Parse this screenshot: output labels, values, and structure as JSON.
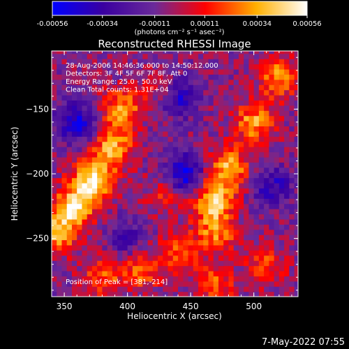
{
  "chart_data": {
    "type": "heatmap",
    "title": "Reconstructed RHESSI Image",
    "xlabel": "Heliocentric X (arcsec)",
    "ylabel": "Heliocentric Y (arcsec)",
    "xlim": [
      340,
      535
    ],
    "ylim": [
      -295,
      -105
    ],
    "xticks": [
      350,
      400,
      450,
      500
    ],
    "yticks": [
      -150,
      -200,
      -250
    ],
    "colorbar": {
      "min": -0.00056,
      "max": 0.00056,
      "tick_values": [
        -0.00056,
        -0.00034,
        -0.00011,
        0.00011,
        0.00034,
        0.00056
      ],
      "tick_labels": [
        "-0.00056",
        "-0.00034",
        "-0.00011",
        "0.00011",
        "0.00034",
        "0.00056"
      ],
      "unit_text": "(photons cm⁻² s⁻¹ asec⁻²)",
      "colors": [
        "#0000ff",
        "#3a00a0",
        "#6a2a9a",
        "#ff0000",
        "#ffb000",
        "#ffffff"
      ]
    },
    "annotations": [
      "28-Aug-2006 14:46:36.000 to 14:50:12.000",
      "Detectors: 3F 4F 5F 6F 7F 8F, Att 0",
      "Energy Range: 25.0 - 50.0 keV",
      "Clean     Total counts: 1.31E+04"
    ],
    "peak_label": "Position of Peak = [381,-214]",
    "peak": [
      381,
      -214
    ],
    "hot_regions": [
      {
        "x": 372,
        "y": -205,
        "value": 0.00056
      },
      {
        "x": 358,
        "y": -225,
        "value": 0.0005
      },
      {
        "x": 388,
        "y": -180,
        "value": 0.00045
      },
      {
        "x": 395,
        "y": -150,
        "value": 0.0004
      },
      {
        "x": 345,
        "y": -245,
        "value": 0.00042
      },
      {
        "x": 468,
        "y": -220,
        "value": 0.00048
      },
      {
        "x": 480,
        "y": -195,
        "value": 0.00044
      },
      {
        "x": 500,
        "y": -160,
        "value": 0.0004
      },
      {
        "x": 520,
        "y": -125,
        "value": 0.00038
      },
      {
        "x": 470,
        "y": -245,
        "value": 0.00036
      },
      {
        "x": 440,
        "y": -260,
        "value": 0.0003
      },
      {
        "x": 410,
        "y": -275,
        "value": 0.0003
      },
      {
        "x": 470,
        "y": -285,
        "value": 0.00028
      },
      {
        "x": 380,
        "y": -280,
        "value": 0.00028
      },
      {
        "x": 510,
        "y": -270,
        "value": 0.00024
      },
      {
        "x": 430,
        "y": -215,
        "value": 0.0002
      },
      {
        "x": 425,
        "y": -135,
        "value": 0.00018
      }
    ],
    "cold_regions": [
      {
        "x": 360,
        "y": -160,
        "value": -0.0004
      },
      {
        "x": 445,
        "y": -200,
        "value": -0.00045
      },
      {
        "x": 440,
        "y": -140,
        "value": -0.00035
      },
      {
        "x": 515,
        "y": -210,
        "value": -0.0003
      },
      {
        "x": 400,
        "y": -250,
        "value": -0.00022
      }
    ]
  },
  "footer": {
    "timestamp": "7-May-2022 07:55"
  }
}
